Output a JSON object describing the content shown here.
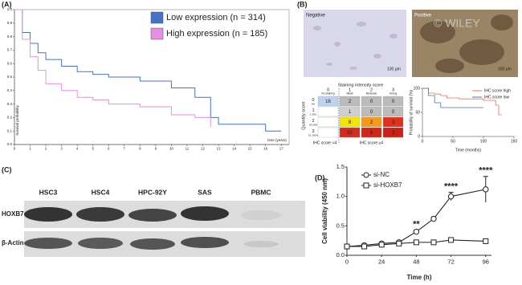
{
  "panels": [
    "(A)",
    "(B)",
    "(C)",
    "(D)"
  ],
  "ihc": {
    "negative": "Negative",
    "positive": "Positive",
    "scale": "100 μm",
    "watermark": "© WILEY"
  },
  "staining_table": {
    "title": "Staining intensity score",
    "row_title": "Quantity score",
    "columns": [
      {
        "score": 0,
        "label": "No staining"
      },
      {
        "score": 1,
        "label": "Weak"
      },
      {
        "score": 2,
        "label": "Moderate"
      },
      {
        "score": 3,
        "label": "Strong"
      }
    ],
    "rows": [
      {
        "score": 0,
        "label": "0%",
        "cells": [
          16,
          2,
          0,
          0
        ]
      },
      {
        "score": 1,
        "label": "1-25%",
        "cells": [
          null,
          1,
          0,
          0
        ]
      },
      {
        "score": 2,
        "label": "26-50%",
        "cells": [
          null,
          8,
          2,
          3
        ]
      },
      {
        "score": 3,
        "label": "51-100%",
        "cells": [
          null,
          32,
          6,
          3
        ]
      }
    ],
    "footer_low": "IHC score <4",
    "footer_high": "IHC score ≥4"
  },
  "western_blot": {
    "lanes": [
      "HSC3",
      "HSC4",
      "HPC-92Y",
      "SAS",
      "PBMC"
    ],
    "rows": [
      "HOXB7",
      "β-Actin"
    ]
  },
  "chart_data": [
    {
      "type": "line",
      "step": true,
      "xlabel": "time (years)",
      "ylabel": "Survival probability",
      "x": [
        0,
        0.5,
        1,
        1.5,
        2,
        3,
        4,
        5,
        6,
        8,
        10,
        11.5,
        12.5,
        13,
        16,
        17
      ],
      "series": [
        {
          "name": "Low expression (n = 314)",
          "color": "#4472c4",
          "values": [
            1,
            0.83,
            0.75,
            0.68,
            0.63,
            0.58,
            0.54,
            0.52,
            0.5,
            0.47,
            0.42,
            0.35,
            0.2,
            0.15,
            0.1,
            0.1
          ]
        },
        {
          "name": "High expression (n = 185)",
          "color": "#e48fe0",
          "values": [
            1,
            0.78,
            0.65,
            0.55,
            0.45,
            0.4,
            0.35,
            0.33,
            0.3,
            0.28,
            0.22,
            0.2,
            0.13,
            null,
            null,
            null
          ]
        }
      ],
      "xlim": [
        0,
        17.5
      ],
      "xticks": [
        0,
        1,
        2,
        3,
        4,
        5,
        6,
        7,
        8,
        9,
        10,
        11,
        12,
        13,
        14,
        15,
        16,
        17
      ],
      "ylim": [
        0,
        1
      ],
      "yticks": [
        {
          "value": 0,
          "label": "0.0"
        },
        0.1,
        0.2,
        0.3,
        0.4,
        0.5,
        0.6,
        0.7,
        0.8,
        0.9,
        {
          "value": 1,
          "label": "1.0"
        }
      ],
      "legend": "top-right"
    },
    {
      "type": "line",
      "step": true,
      "xlabel": "Time (months)",
      "ylabel": "Probability of survival (%)",
      "x": [
        0,
        10,
        20,
        30,
        40,
        60,
        100,
        120,
        125,
        130
      ],
      "series": [
        {
          "name": "IHC score high",
          "color": "#e8734a",
          "values": [
            100,
            90,
            88,
            85,
            80,
            78,
            75,
            65,
            45,
            45
          ]
        },
        {
          "name": "IHC score low",
          "color": "#4a6fd0",
          "values": [
            100,
            85,
            70,
            60,
            60,
            60,
            60,
            null,
            null,
            null
          ]
        }
      ],
      "xlim": [
        0,
        150
      ],
      "xticks": [
        0,
        50,
        100,
        150
      ],
      "ylim": [
        0,
        100
      ],
      "yticks": [
        0,
        50,
        100
      ],
      "legend": "top-right"
    },
    {
      "type": "line",
      "step": false,
      "xlabel": "Time (h)",
      "ylabel": "Cell viability (450 nm)",
      "x": [
        0,
        12,
        24,
        36,
        48,
        60,
        72,
        96
      ],
      "series": [
        {
          "name": "si-NC",
          "color": "#222222",
          "marker": "circle",
          "values": [
            0.15,
            0.17,
            0.2,
            0.22,
            0.4,
            0.62,
            1.0,
            1.12
          ],
          "errors": [
            0,
            0,
            0,
            0,
            0.03,
            0.03,
            0.07,
            0.22
          ]
        },
        {
          "name": "si-HOXB7",
          "color": "#222222",
          "marker": "square",
          "values": [
            0.15,
            0.15,
            0.18,
            0.2,
            0.22,
            0.22,
            0.26,
            0.24
          ]
        }
      ],
      "annotations": [
        {
          "text": "**",
          "x": 48
        },
        {
          "text": "****",
          "x": 72
        },
        {
          "text": "****",
          "x": 96
        }
      ],
      "xlim": [
        0,
        100
      ],
      "xticks": [
        0,
        24,
        48,
        72,
        96
      ],
      "ylim": [
        0,
        1.5
      ],
      "yticks": [
        {
          "value": 0,
          "label": "0.0"
        },
        0.5,
        {
          "value": 1,
          "label": "1.0"
        },
        1.5
      ],
      "legend": "top-left"
    }
  ]
}
